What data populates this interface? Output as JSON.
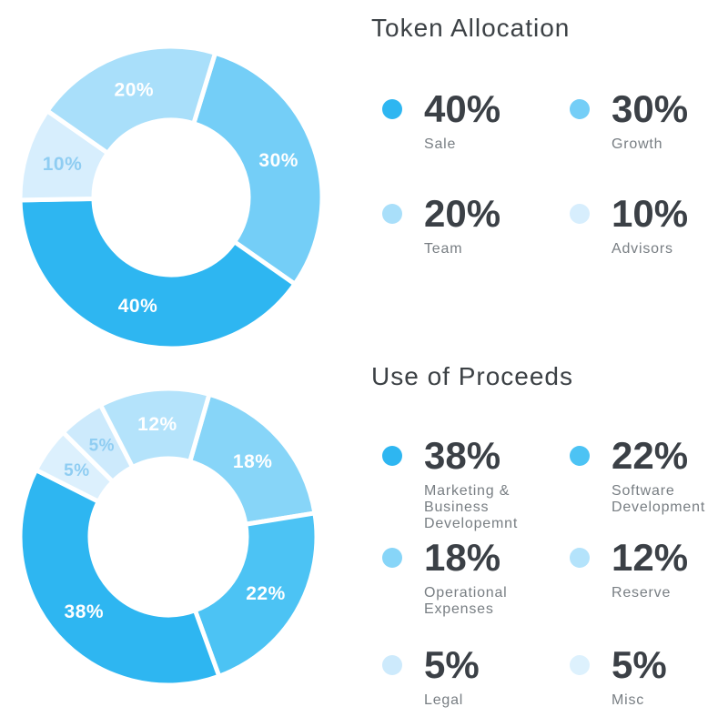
{
  "chart_data": [
    {
      "type": "donut",
      "title": "Token Allocation",
      "start_angle_deg": 17,
      "legend_position": "right",
      "slices_clockwise": [
        {
          "label": "Growth",
          "value": 30,
          "pct_text": "30%",
          "color": "#74cef7",
          "pct_label_color": "#ffffff"
        },
        {
          "label": "Sale",
          "value": 40,
          "pct_text": "40%",
          "color": "#2eb6f1",
          "pct_label_color": "#ffffff"
        },
        {
          "label": "Advisors",
          "value": 10,
          "pct_text": "10%",
          "color": "#d7eefd",
          "pct_label_color": "#8fcdf2"
        },
        {
          "label": "Team",
          "value": 20,
          "pct_text": "20%",
          "color": "#a9dffa",
          "pct_label_color": "#ffffff"
        }
      ],
      "legend": [
        {
          "value_text": "40%",
          "label": "Sale",
          "color": "#2eb6f1"
        },
        {
          "value_text": "30%",
          "label": "Growth",
          "color": "#74cef7"
        },
        {
          "value_text": "20%",
          "label": "Team",
          "color": "#a9dffa"
        },
        {
          "value_text": "10%",
          "label": "Advisors",
          "color": "#d7eefd"
        }
      ]
    },
    {
      "type": "donut",
      "title": "Use of Proceeds",
      "start_angle_deg": 16,
      "legend_position": "right",
      "slices_clockwise": [
        {
          "label": "Operational Expenses",
          "value": 18,
          "pct_text": "18%",
          "color": "#87d5f8",
          "pct_label_color": "#ffffff"
        },
        {
          "label": "Software Development",
          "value": 22,
          "pct_text": "22%",
          "color": "#4cc3f4",
          "pct_label_color": "#ffffff"
        },
        {
          "label": "Marketing & Business Developemnt",
          "value": 38,
          "pct_text": "38%",
          "color": "#2eb6f1",
          "pct_label_color": "#ffffff"
        },
        {
          "label": "Misc",
          "value": 5,
          "pct_text": "5%",
          "color": "#dcf0fd",
          "pct_label_color": "#8fcdf2"
        },
        {
          "label": "Legal",
          "value": 5,
          "pct_text": "5%",
          "color": "#cdeafc",
          "pct_label_color": "#8fcdf2"
        },
        {
          "label": "Reserve",
          "value": 12,
          "pct_text": "12%",
          "color": "#b4e3fb",
          "pct_label_color": "#ffffff"
        }
      ],
      "legend": [
        {
          "value_text": "38%",
          "label": "Marketing & Business Developemnt",
          "color": "#2eb6f1"
        },
        {
          "value_text": "22%",
          "label": "Software Development",
          "color": "#4cc3f4"
        },
        {
          "value_text": "18%",
          "label": "Operational Expenses",
          "color": "#87d5f8"
        },
        {
          "value_text": "12%",
          "label": "Reserve",
          "color": "#b4e3fb"
        },
        {
          "value_text": "5%",
          "label": "Legal",
          "color": "#cdeafc"
        },
        {
          "value_text": "5%",
          "label": "Misc",
          "color": "#ddf1fd"
        }
      ]
    }
  ]
}
